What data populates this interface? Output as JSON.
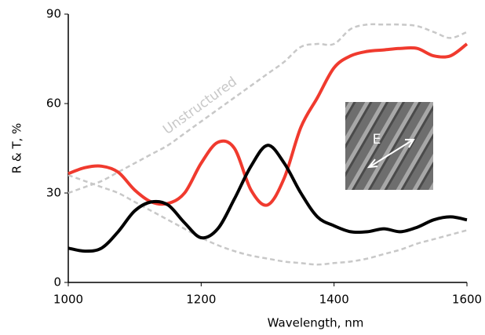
{
  "chart_data": {
    "type": "line",
    "x_label": "Wavelength, nm",
    "y_label": "R & T, %",
    "x": [
      1000,
      1025,
      1050,
      1075,
      1100,
      1125,
      1150,
      1175,
      1200,
      1225,
      1250,
      1275,
      1300,
      1325,
      1350,
      1375,
      1400,
      1425,
      1450,
      1475,
      1500,
      1525,
      1550,
      1575,
      1600
    ],
    "series": [
      {
        "color": "#f03a2e",
        "dash": false,
        "values": [
          36.5,
          38.5,
          39,
          37,
          31,
          27,
          26.5,
          30,
          40,
          47,
          45,
          31,
          26,
          35,
          52,
          62,
          72,
          76,
          77.5,
          78,
          78.5,
          78.5,
          76,
          76,
          80
        ]
      },
      {
        "color": "#000000",
        "dash": false,
        "values": [
          11.5,
          10.5,
          11.5,
          17,
          24,
          27,
          26,
          20,
          15,
          18,
          28,
          39,
          46,
          40,
          30,
          22,
          19,
          17,
          17,
          18,
          17,
          18.5,
          21,
          22,
          21
        ]
      },
      {
        "color": "#c8c8c8",
        "dash": true,
        "values": [
          30,
          32,
          34,
          37,
          40,
          43,
          46,
          50,
          54,
          58,
          62,
          66,
          70,
          74,
          79,
          80,
          80,
          85,
          86.5,
          86.5,
          86.5,
          86,
          84,
          82,
          84
        ]
      },
      {
        "color": "#c8c8c8",
        "dash": true,
        "values": [
          36,
          34,
          32,
          30,
          27,
          24,
          21,
          18,
          15,
          12.5,
          10.5,
          9,
          8,
          7,
          6.5,
          6,
          6.5,
          7,
          8,
          9.5,
          11,
          13,
          14.5,
          16,
          17.5
        ]
      }
    ],
    "annotations": [
      "Unstructured",
      "E"
    ],
    "xlim": [
      1000,
      1600
    ],
    "xticks": [
      1000,
      1200,
      1400,
      1600
    ],
    "ylim": [
      0,
      90
    ],
    "yticks": [
      0,
      30,
      60,
      90
    ]
  }
}
